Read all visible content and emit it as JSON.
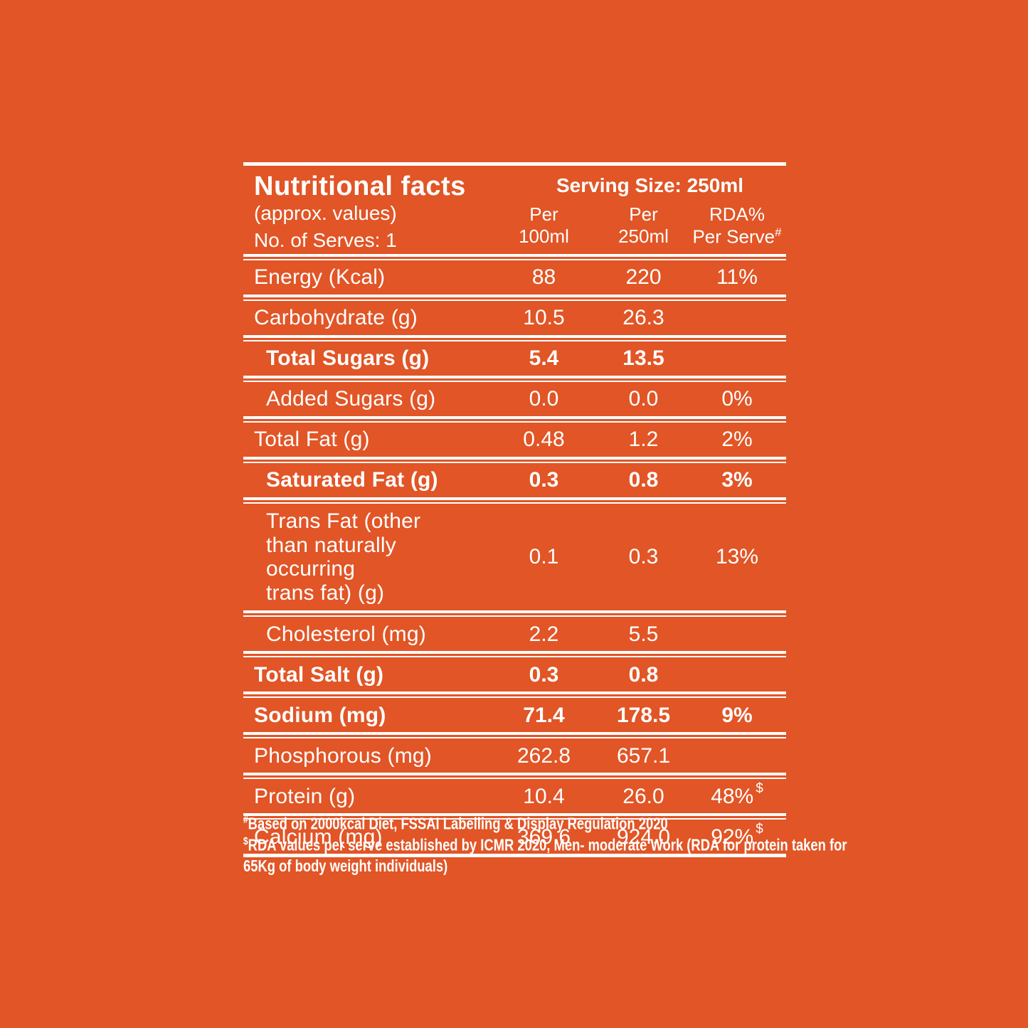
{
  "colors": {
    "background": "#E15526",
    "foreground": "#FFFFFF"
  },
  "header": {
    "title": "Nutritional facts",
    "subtitle": "(approx. values)",
    "serves": "No. of Serves: 1",
    "serving_size": "Serving Size: 250ml",
    "columns": [
      {
        "lines": [
          "Per",
          "100ml"
        ],
        "sup": ""
      },
      {
        "lines": [
          "Per",
          "250ml"
        ],
        "sup": ""
      },
      {
        "lines": [
          "RDA%",
          "Per Serve"
        ],
        "sup": "#"
      }
    ]
  },
  "table": {
    "rows": [
      {
        "label": "Energy (Kcal)",
        "values": [
          "88",
          "220",
          "11%"
        ],
        "value_sup": "",
        "bold": false,
        "indent": false
      },
      {
        "label": "Carbohydrate (g)",
        "values": [
          "10.5",
          "26.3",
          ""
        ],
        "value_sup": "",
        "bold": false,
        "indent": false
      },
      {
        "label": "Total Sugars (g)",
        "values": [
          "5.4",
          "13.5",
          ""
        ],
        "value_sup": "",
        "bold": true,
        "indent": true
      },
      {
        "label": "Added Sugars (g)",
        "values": [
          "0.0",
          "0.0",
          "0%"
        ],
        "value_sup": "",
        "bold": false,
        "indent": true
      },
      {
        "label": "Total Fat (g)",
        "values": [
          "0.48",
          "1.2",
          "2%"
        ],
        "value_sup": "",
        "bold": false,
        "indent": false
      },
      {
        "label": "Saturated Fat (g)",
        "values": [
          "0.3",
          "0.8",
          "3%"
        ],
        "value_sup": "",
        "bold": true,
        "indent": true
      },
      {
        "label": "Trans Fat (other than naturally occurring trans fat) (g)",
        "label_lines": [
          "Trans Fat (other",
          "than naturally",
          "occurring",
          "trans fat) (g)"
        ],
        "values": [
          "0.1",
          "0.3",
          "13%"
        ],
        "value_sup": "",
        "bold": false,
        "indent": true
      },
      {
        "label": "Cholesterol (mg)",
        "values": [
          "2.2",
          "5.5",
          ""
        ],
        "value_sup": "",
        "bold": false,
        "indent": true
      },
      {
        "label": "Total Salt (g)",
        "values": [
          "0.3",
          "0.8",
          ""
        ],
        "value_sup": "",
        "bold": true,
        "indent": false
      },
      {
        "label": "Sodium (mg)",
        "values": [
          "71.4",
          "178.5",
          "9%"
        ],
        "value_sup": "",
        "bold": true,
        "indent": false
      },
      {
        "label": "Phosphorous (mg)",
        "values": [
          "262.8",
          "657.1",
          ""
        ],
        "value_sup": "",
        "bold": false,
        "indent": false
      },
      {
        "label": "Protein (g)",
        "values": [
          "10.4",
          "26.0",
          "48%"
        ],
        "value_sup": "$",
        "bold": false,
        "indent": false
      },
      {
        "label": "Calcium (mg)",
        "values": [
          "369.6",
          "924.0",
          "92%"
        ],
        "value_sup": "$",
        "bold": false,
        "indent": false
      }
    ]
  },
  "footnotes": [
    {
      "marker": "#",
      "lines": [
        "Based on 2000kcal Diet, FSSAI Labelling & Display Regulation 2020"
      ]
    },
    {
      "marker": "$",
      "lines": [
        "RDA values per serve established by ICMR 2020, Men- moderate Work (RDA for protein taken for",
        "65Kg of body weight individuals)"
      ]
    }
  ]
}
